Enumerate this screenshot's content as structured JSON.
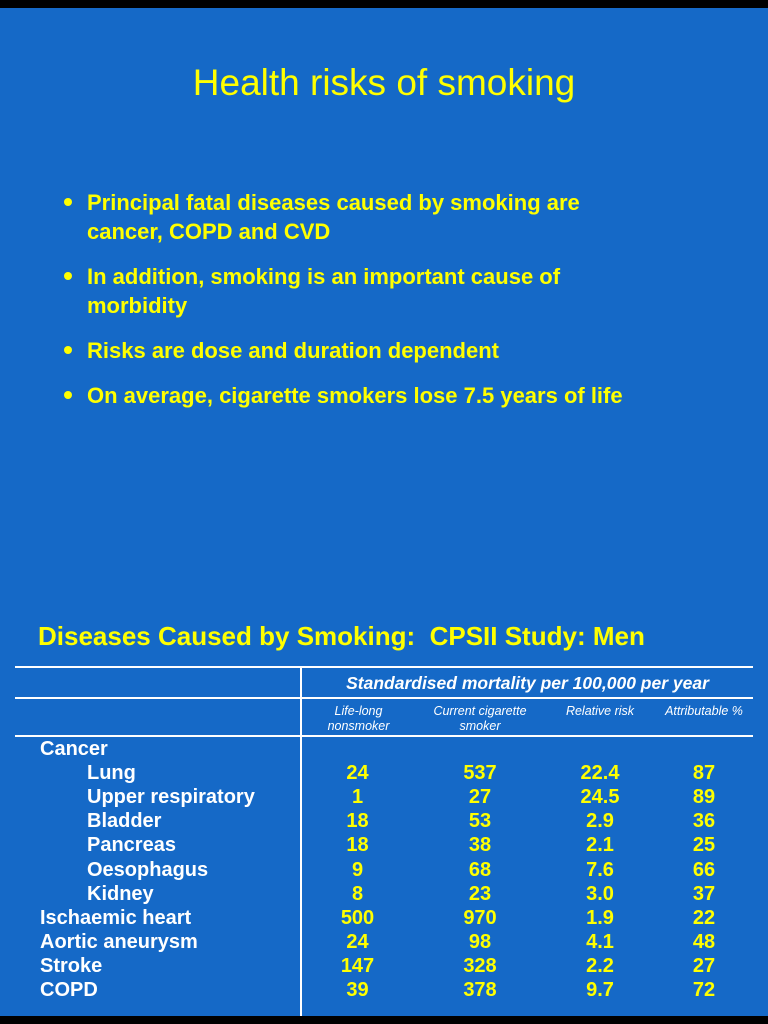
{
  "colors": {
    "frame": "#000000",
    "slide_background": "#1569C7",
    "accent_yellow": "#FFFF00",
    "text_white": "#FFFFFF"
  },
  "slide1": {
    "title": "Health risks of smoking",
    "bullets": [
      "Principal fatal diseases caused by smoking are\ncancer, COPD and CVD",
      "In addition, smoking is an important cause of\nmorbidity",
      "Risks are dose and duration dependent",
      "On average, cigarette smokers lose 7.5 years of life"
    ]
  },
  "slide2": {
    "title": "Diseases Caused by Smoking:  CPSII Study: Men",
    "table": {
      "span_header": "Standardised mortality per 100,000 per year",
      "columns": [
        "Life-long nonsmoker",
        "Current cigarette smoker",
        "Relative risk",
        "Attributable %"
      ],
      "rows": [
        {
          "label": "Cancer",
          "values": [
            "",
            "",
            "",
            ""
          ]
        },
        {
          "label": "Lung",
          "values": [
            "24",
            "537",
            "22.4",
            "87"
          ]
        },
        {
          "label": "Upper respiratory",
          "values": [
            "1",
            "27",
            "24.5",
            "89"
          ]
        },
        {
          "label": "Bladder",
          "values": [
            "18",
            "53",
            "2.9",
            "36"
          ]
        },
        {
          "label": "Pancreas",
          "values": [
            "18",
            "38",
            "2.1",
            "25"
          ]
        },
        {
          "label": "Oesophagus",
          "values": [
            "9",
            "68",
            "7.6",
            "66"
          ]
        },
        {
          "label": "Kidney",
          "values": [
            "8",
            "23",
            "3.0",
            "37"
          ]
        },
        {
          "label": "Ischaemic heart",
          "values": [
            "500",
            "970",
            "1.9",
            "22"
          ]
        },
        {
          "label": "Aortic aneurysm",
          "values": [
            "24",
            "98",
            "4.1",
            "48"
          ]
        },
        {
          "label": "Stroke",
          "values": [
            "147",
            "328",
            "2.2",
            "27"
          ]
        },
        {
          "label": "COPD",
          "values": [
            "39",
            "378",
            "9.7",
            "72"
          ]
        }
      ]
    }
  }
}
